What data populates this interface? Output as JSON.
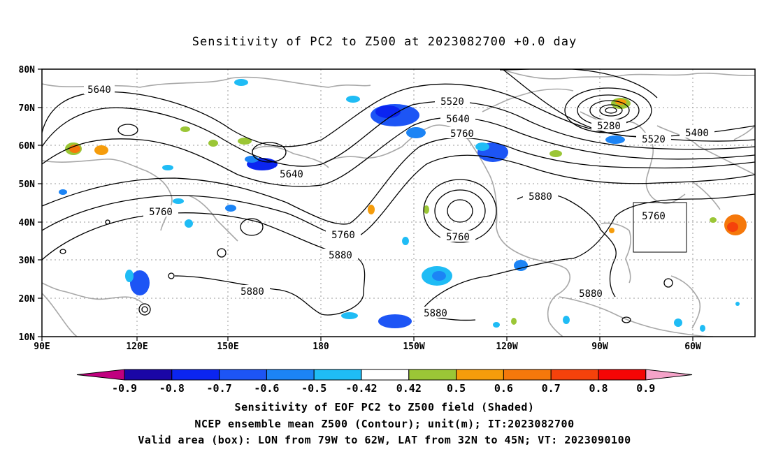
{
  "title": "Sensitivity of PC2 to Z500 at 2023082700 +0.0 day",
  "map": {
    "lon_range_deg_east": [
      90,
      310
    ],
    "lat_range": [
      10,
      80
    ],
    "lon_ticks": [
      "90E",
      "120E",
      "150E",
      "180",
      "150W",
      "120W",
      "90W",
      "60W"
    ],
    "lat_ticks": [
      "80N",
      "70N",
      "60N",
      "50N",
      "40N",
      "30N",
      "20N",
      "10N"
    ],
    "grid": "dotted",
    "valid_box": {
      "lon_from": "79W",
      "lon_to": "62W",
      "lat_from": "32N",
      "lat_to": "45N"
    }
  },
  "contour_labels": [
    "5640",
    "5520",
    "5640",
    "5760",
    "5280",
    "5520",
    "5400",
    "5640",
    "5760",
    "5880",
    "5760",
    "5760",
    "5880",
    "5880",
    "5880",
    "5760",
    "5880"
  ],
  "colorbar": {
    "levels": [
      "-0.9",
      "-0.8",
      "-0.7",
      "-0.6",
      "-0.5",
      "-0.42",
      "0.42",
      "0.5",
      "0.6",
      "0.7",
      "0.8",
      "0.9"
    ],
    "colors": [
      "#c0007f",
      "#1a06a6",
      "#0b25f0",
      "#1d55f5",
      "#1c84f5",
      "#1fbcf5",
      "#ffffff",
      "#9bc636",
      "#f59c0b",
      "#f5780b",
      "#f5420b",
      "#f50505",
      "#f5a3c9"
    ]
  },
  "captions": [
    "Sensitivity of EOF PC2 to Z500 field (Shaded)",
    "NCEP ensemble mean Z500 (Contour); unit(m); IT:2023082700",
    "Valid area (box): LON from 79W to 62W, LAT from 32N to 45N; VT: 2023090100"
  ]
}
